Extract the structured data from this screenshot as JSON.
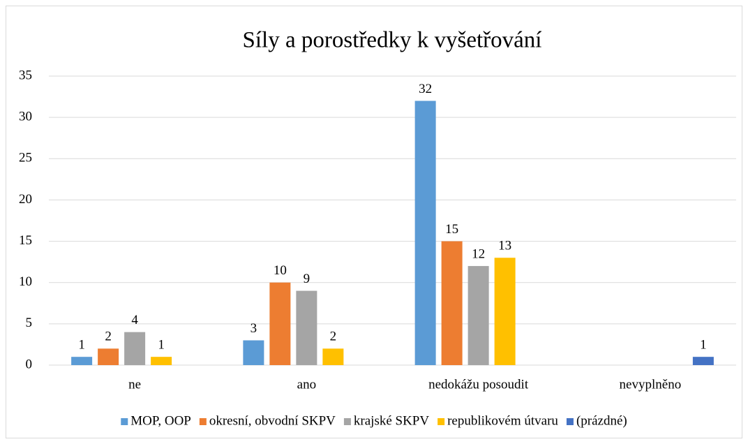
{
  "chart_data": {
    "type": "bar",
    "title": "Síly a porostředky k vyšetřování",
    "categories": [
      "ne",
      "ano",
      "nedokážu posoudit",
      "nevyplněno"
    ],
    "series": [
      {
        "name": "MOP, OOP",
        "color": "#5b9bd5",
        "values": [
          1,
          3,
          32,
          null
        ]
      },
      {
        "name": "okresní, obvodní SKPV",
        "color": "#ed7d31",
        "values": [
          2,
          10,
          15,
          null
        ]
      },
      {
        "name": "krajské SKPV",
        "color": "#a5a5a5",
        "values": [
          4,
          9,
          12,
          null
        ]
      },
      {
        "name": "republikovém útvaru",
        "color": "#ffc000",
        "values": [
          1,
          2,
          13,
          null
        ]
      },
      {
        "name": "(prázdné)",
        "color": "#4472c4",
        "values": [
          null,
          null,
          null,
          1
        ]
      }
    ],
    "ylim": [
      0,
      35
    ],
    "yticks": [
      0,
      5,
      10,
      15,
      20,
      25,
      30,
      35
    ],
    "grid": true,
    "legend": "bottom"
  }
}
